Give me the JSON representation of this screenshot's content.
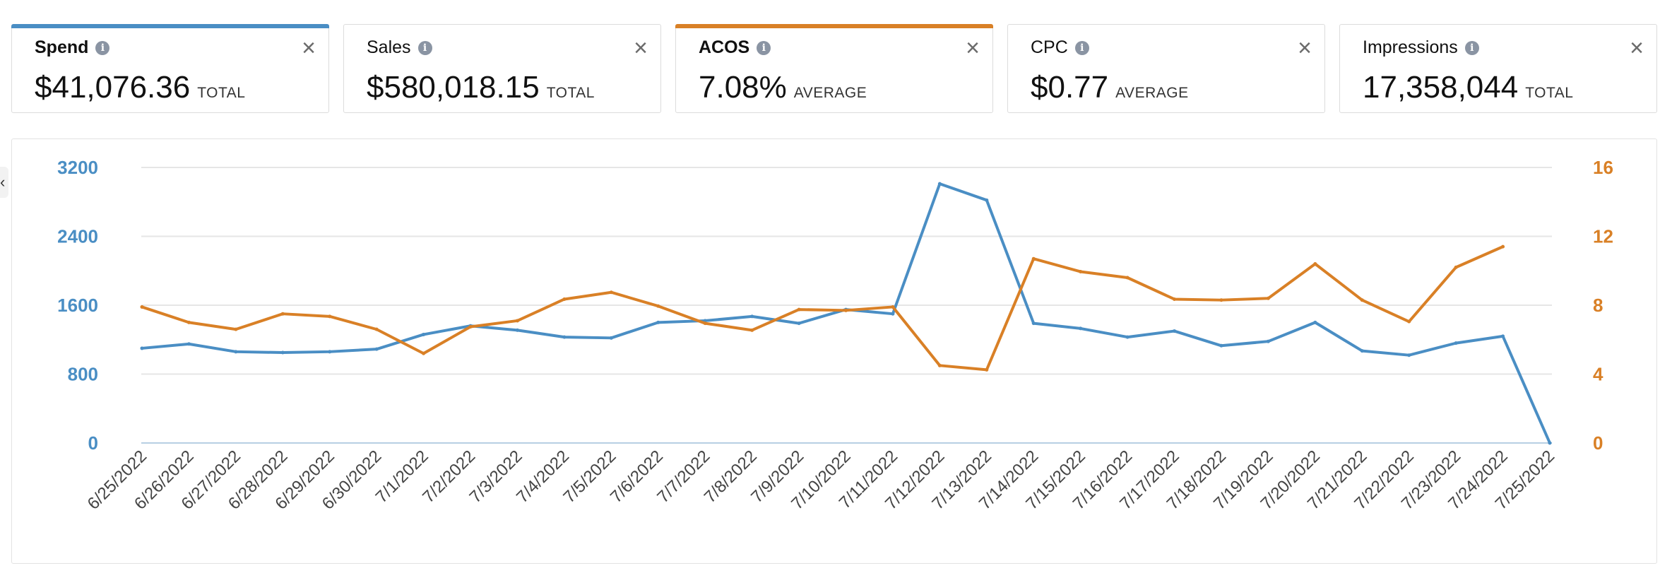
{
  "metrics": [
    {
      "label": "Spend",
      "value": "$41,076.36",
      "unit": "TOTAL",
      "selected": true,
      "color": "#4a8ec4"
    },
    {
      "label": "Sales",
      "value": "$580,018.15",
      "unit": "TOTAL",
      "selected": false,
      "color": ""
    },
    {
      "label": "ACOS",
      "value": "7.08%",
      "unit": "AVERAGE",
      "selected": true,
      "color": "#d98026"
    },
    {
      "label": "CPC",
      "value": "$0.77",
      "unit": "AVERAGE",
      "selected": false,
      "color": ""
    },
    {
      "label": "Impressions",
      "value": "17,358,044",
      "unit": "TOTAL",
      "selected": false,
      "color": ""
    }
  ],
  "icons": {
    "info": "i",
    "close": "×",
    "nav_arrow": "‹"
  },
  "chart_data": {
    "type": "line",
    "categories": [
      "6/25/2022",
      "6/26/2022",
      "6/27/2022",
      "6/28/2022",
      "6/29/2022",
      "6/30/2022",
      "7/1/2022",
      "7/2/2022",
      "7/3/2022",
      "7/4/2022",
      "7/5/2022",
      "7/6/2022",
      "7/7/2022",
      "7/8/2022",
      "7/9/2022",
      "7/10/2022",
      "7/11/2022",
      "7/12/2022",
      "7/13/2022",
      "7/14/2022",
      "7/15/2022",
      "7/16/2022",
      "7/17/2022",
      "7/18/2022",
      "7/19/2022",
      "7/20/2022",
      "7/21/2022",
      "7/22/2022",
      "7/23/2022",
      "7/24/2022",
      "7/25/2022"
    ],
    "series": [
      {
        "name": "Spend",
        "axis": "left",
        "color": "#4a8ec4",
        "values": [
          1100,
          1150,
          1060,
          1050,
          1060,
          1090,
          1260,
          1360,
          1310,
          1230,
          1220,
          1400,
          1420,
          1470,
          1390,
          1550,
          1500,
          3010,
          2820,
          1390,
          1330,
          1230,
          1300,
          1130,
          1180,
          1400,
          1070,
          1020,
          1160,
          1240,
          0
        ]
      },
      {
        "name": "ACOS",
        "axis": "right",
        "color": "#d98026",
        "values": [
          7.9,
          7.0,
          6.6,
          7.5,
          7.35,
          6.6,
          5.2,
          6.75,
          7.1,
          8.35,
          8.75,
          7.95,
          6.95,
          6.55,
          7.75,
          7.7,
          7.9,
          4.5,
          4.25,
          10.7,
          9.95,
          9.6,
          8.35,
          8.3,
          8.4,
          10.4,
          8.3,
          7.05,
          10.2,
          11.4,
          null
        ]
      }
    ],
    "left_axis": {
      "ticks": [
        0,
        800,
        1600,
        2400,
        3200
      ],
      "range": [
        0,
        3200
      ]
    },
    "right_axis": {
      "ticks": [
        0,
        4,
        8,
        12,
        16
      ],
      "range": [
        0,
        16
      ]
    },
    "grid": true
  }
}
